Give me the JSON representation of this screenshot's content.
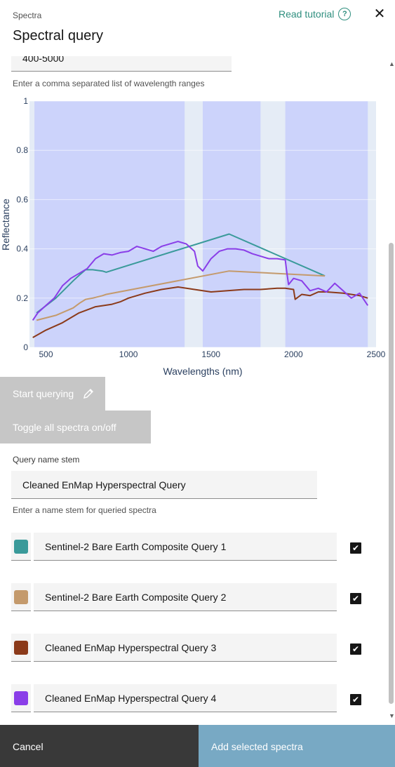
{
  "header": {
    "breadcrumb": "Spectra",
    "title": "Spectral query",
    "tutorial_label": "Read tutorial"
  },
  "range_input": {
    "value": "400-5000",
    "helper": "Enter a comma separated list of wavelength ranges"
  },
  "chart_data": {
    "type": "line",
    "xlabel": "Wavelengths (nm)",
    "ylabel": "Reflectance",
    "xlim": [
      400,
      2500
    ],
    "ylim": [
      0,
      1
    ],
    "x_ticks": [
      "500",
      "1000",
      "1500",
      "2000",
      "2500"
    ],
    "y_ticks": [
      "0",
      "0.2",
      "0.4",
      "0.6",
      "0.8",
      "1"
    ],
    "shaded_ranges": [
      [
        430,
        1340
      ],
      [
        1450,
        1800
      ],
      [
        1950,
        2450
      ]
    ],
    "series": [
      {
        "name": "Sentinel-2 Bare Earth Composite Query 1",
        "color": "#3a9a9a",
        "x": [
          443,
          560,
          665,
          705,
          740,
          783,
          842,
          865,
          1610,
          2190
        ],
        "y": [
          0.14,
          0.2,
          0.27,
          0.295,
          0.315,
          0.315,
          0.31,
          0.305,
          0.46,
          0.29
        ]
      },
      {
        "name": "Sentinel-2 Bare Earth Composite Query 2",
        "color": "#c49a6c",
        "x": [
          443,
          560,
          665,
          705,
          740,
          783,
          842,
          865,
          1610,
          2190
        ],
        "y": [
          0.11,
          0.13,
          0.16,
          0.18,
          0.195,
          0.2,
          0.21,
          0.215,
          0.31,
          0.29
        ]
      },
      {
        "name": "Cleaned EnMap Hyperspectral Query 3",
        "color": "#8b3a1a",
        "x": [
          420,
          500,
          600,
          700,
          800,
          900,
          950,
          1000,
          1100,
          1200,
          1300,
          1400,
          1500,
          1600,
          1700,
          1800,
          1900,
          1950,
          2000,
          2010,
          2050,
          2100,
          2150,
          2200,
          2300,
          2400,
          2450
        ],
        "y": [
          0.04,
          0.07,
          0.1,
          0.14,
          0.165,
          0.175,
          0.185,
          0.2,
          0.22,
          0.235,
          0.245,
          0.235,
          0.225,
          0.23,
          0.235,
          0.235,
          0.24,
          0.24,
          0.235,
          0.195,
          0.215,
          0.21,
          0.225,
          0.225,
          0.22,
          0.21,
          0.2
        ]
      },
      {
        "name": "Cleaned EnMap Hyperspectral Query 4",
        "color": "#8a3ee8",
        "x": [
          420,
          450,
          500,
          550,
          600,
          650,
          700,
          750,
          800,
          850,
          900,
          950,
          1000,
          1050,
          1100,
          1150,
          1200,
          1250,
          1300,
          1350,
          1400,
          1420,
          1450,
          1500,
          1550,
          1600,
          1650,
          1700,
          1750,
          1800,
          1850,
          1900,
          1950,
          1960,
          1970,
          2000,
          2050,
          2100,
          2150,
          2200,
          2250,
          2300,
          2350,
          2400,
          2450
        ],
        "y": [
          0.11,
          0.14,
          0.17,
          0.2,
          0.25,
          0.28,
          0.3,
          0.32,
          0.36,
          0.38,
          0.375,
          0.385,
          0.39,
          0.41,
          0.4,
          0.39,
          0.41,
          0.42,
          0.43,
          0.42,
          0.39,
          0.33,
          0.31,
          0.36,
          0.39,
          0.4,
          0.4,
          0.395,
          0.38,
          0.37,
          0.36,
          0.36,
          0.355,
          0.3,
          0.255,
          0.28,
          0.27,
          0.23,
          0.24,
          0.225,
          0.26,
          0.23,
          0.2,
          0.22,
          0.17
        ]
      }
    ]
  },
  "buttons": {
    "start_querying": "Start querying",
    "toggle_all": "Toggle all spectra on/off"
  },
  "query_name": {
    "label": "Query name stem",
    "value": "Cleaned EnMap Hyperspectral Query",
    "helper": "Enter a name stem for queried spectra"
  },
  "spectra_list": [
    {
      "name": "Sentinel-2 Bare Earth Composite Query 1",
      "color": "#3a9a9a",
      "checked": true
    },
    {
      "name": "Sentinel-2 Bare Earth Composite Query 2",
      "color": "#c49a6c",
      "checked": true
    },
    {
      "name": "Cleaned EnMap Hyperspectral Query 3",
      "color": "#8b3a1a",
      "checked": true
    },
    {
      "name": "Cleaned EnMap Hyperspectral Query 4",
      "color": "#8a3ee8",
      "checked": true
    }
  ],
  "footer": {
    "cancel": "Cancel",
    "add": "Add selected spectra"
  }
}
